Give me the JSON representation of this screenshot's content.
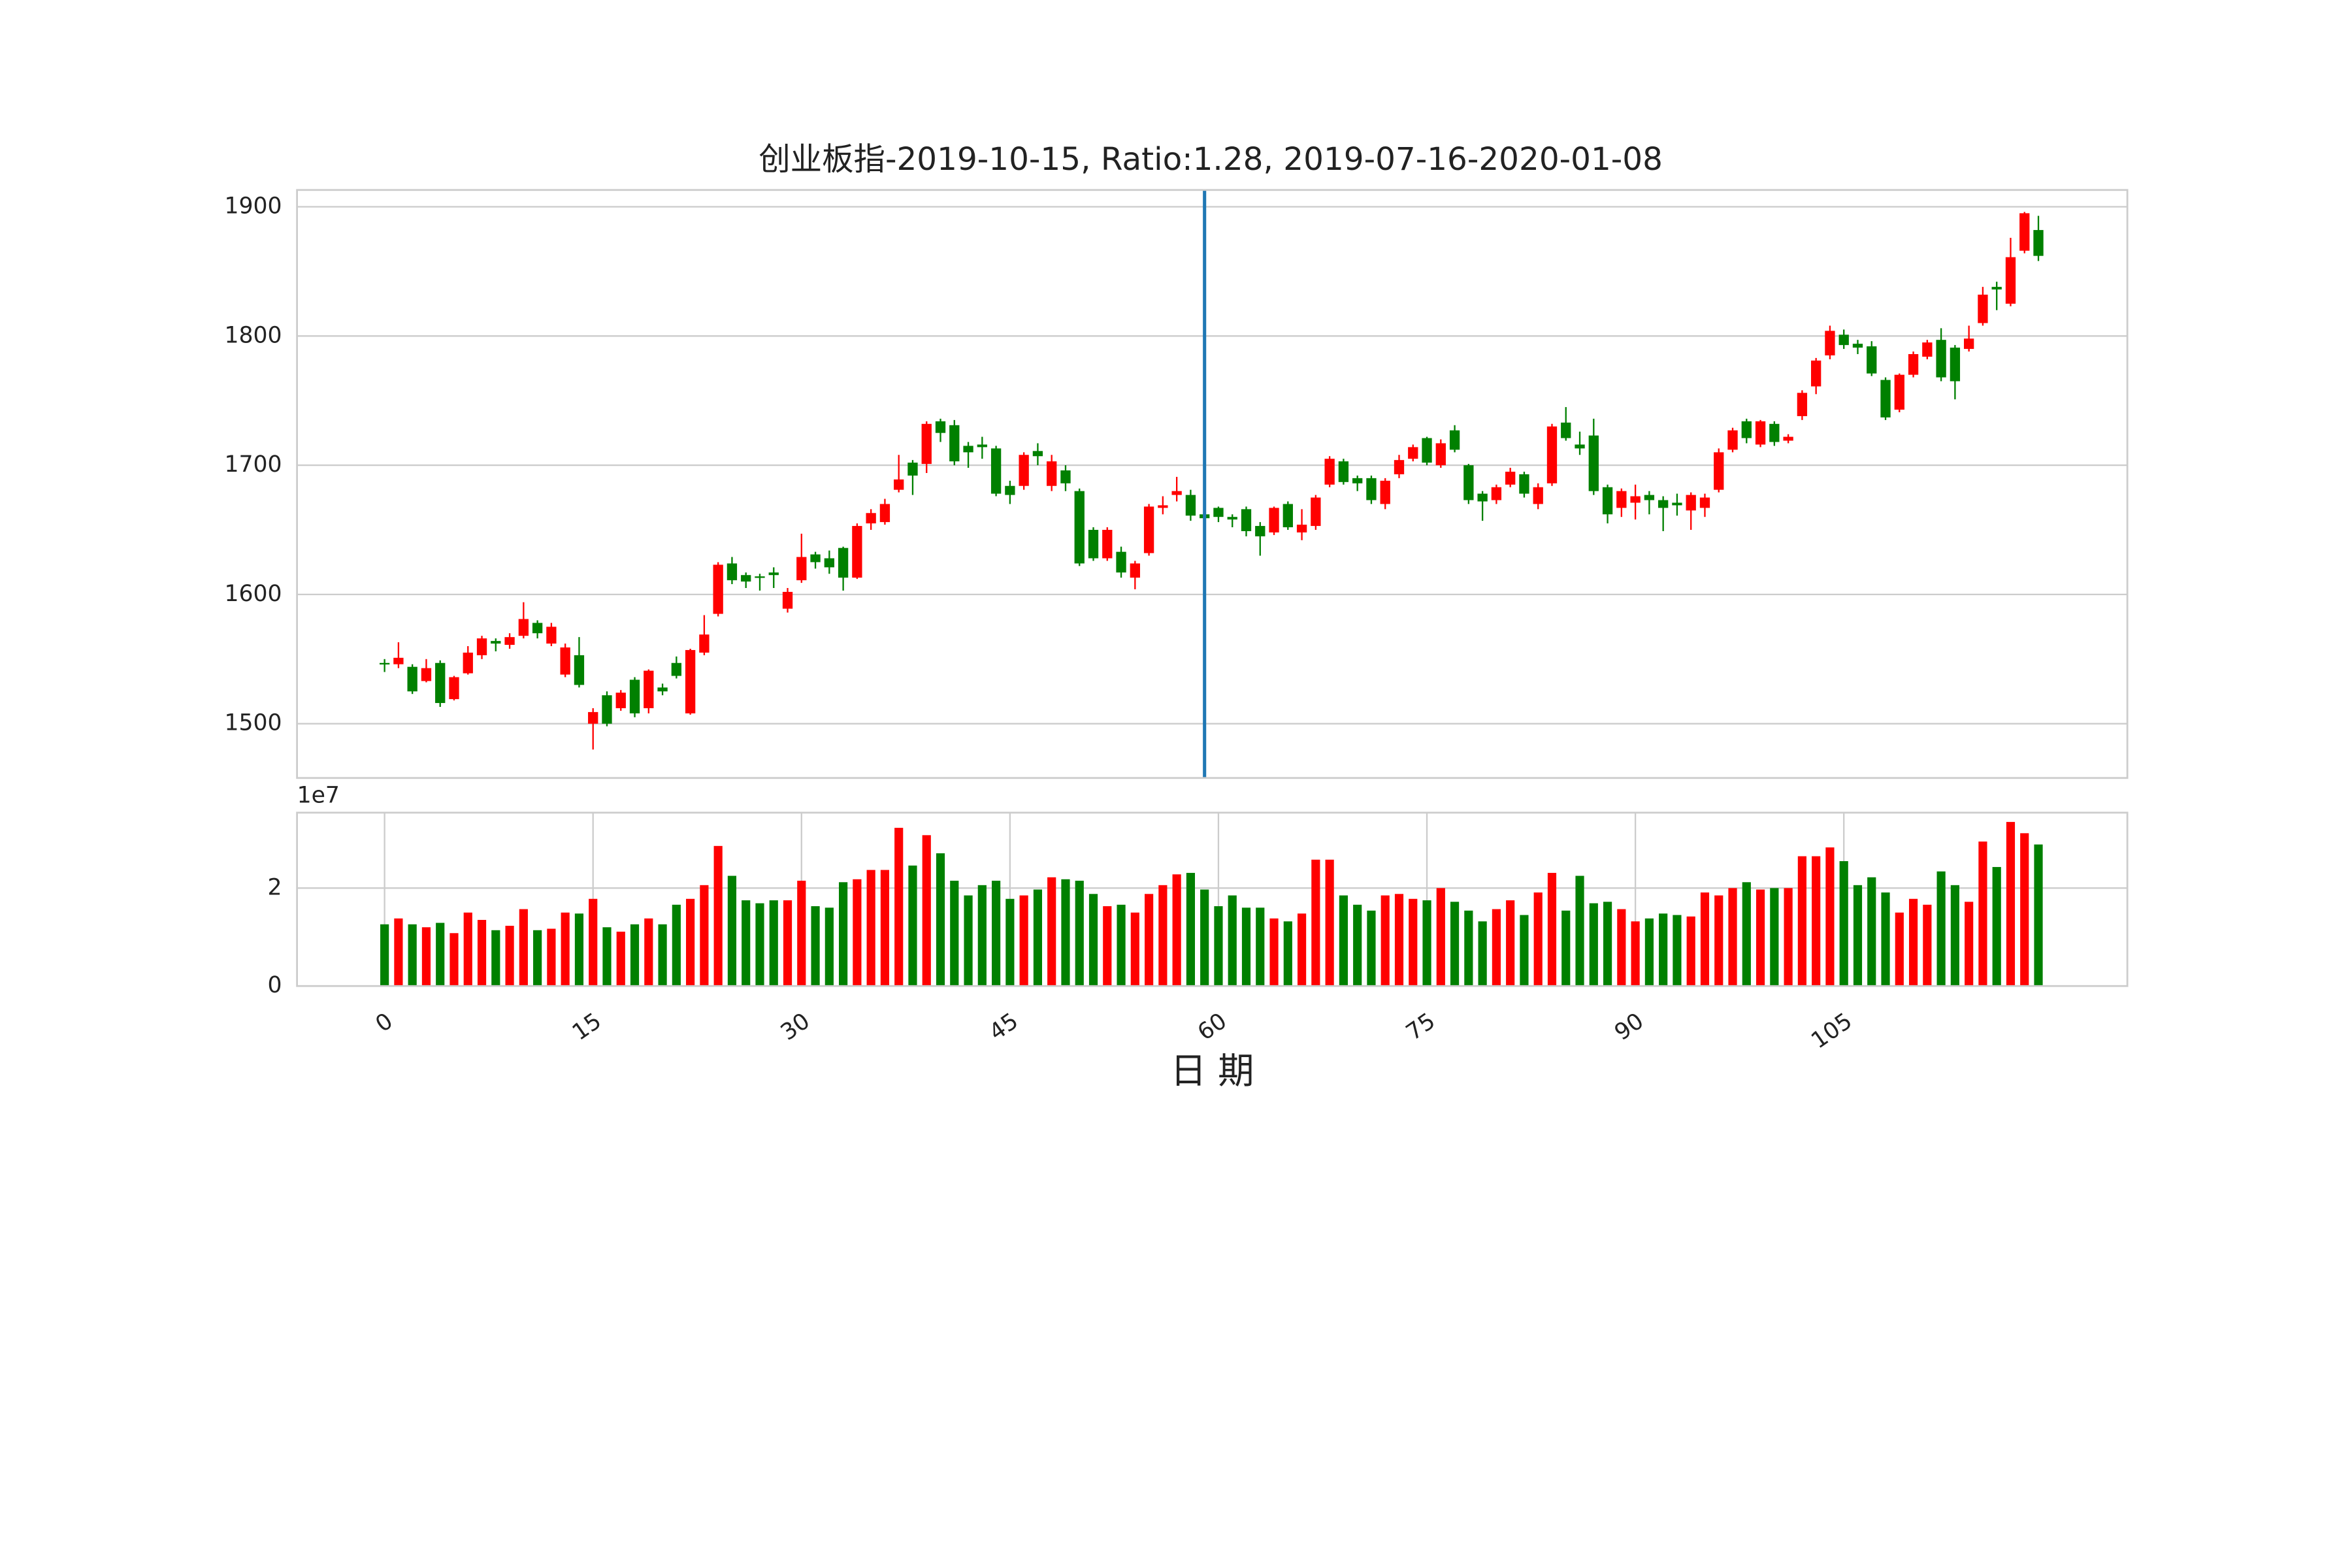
{
  "chart_data": [
    {
      "type": "candlestick",
      "title": "创业板指-2019-10-15, Ratio:1.28, 2019-07-16-2020-01-08",
      "open": [
        1547,
        1546,
        1544,
        1533,
        1547,
        1519,
        1539,
        1553,
        1564,
        1561,
        1568,
        1578,
        1562,
        1538,
        1553,
        1500,
        1522,
        1512,
        1534,
        1512,
        1528,
        1547,
        1508,
        1555,
        1585,
        1624,
        1615,
        1614,
        1617,
        1589,
        1611,
        1631,
        1628,
        1636,
        1613,
        1655,
        1656,
        1681,
        1702,
        1701,
        1734,
        1731,
        1715,
        1716,
        1713,
        1684,
        1684,
        1711,
        1684,
        1696,
        1680,
        1650,
        1628,
        1633,
        1613,
        1632,
        1667,
        1677,
        1677,
        1662,
        1667,
        1660,
        1666,
        1653,
        1648,
        1670,
        1648,
        1653,
        1685,
        1703,
        1690,
        1690,
        1670,
        1693,
        1705,
        1721,
        1700,
        1727,
        1700,
        1678,
        1673,
        1685,
        1693,
        1670,
        1686,
        1733,
        1716,
        1723,
        1683,
        1667,
        1671,
        1677,
        1673,
        1671,
        1665,
        1667,
        1681,
        1712,
        1734,
        1716,
        1732,
        1719,
        1738,
        1761,
        1785,
        1801,
        1794,
        1792,
        1766,
        1743,
        1770,
        1784,
        1797,
        1791,
        1790,
        1810,
        1838,
        1825,
        1866,
        1882
      ],
      "high": [
        1550,
        1563,
        1546,
        1550,
        1549,
        1537,
        1560,
        1568,
        1566,
        1570,
        1594,
        1580,
        1578,
        1562,
        1567,
        1512,
        1525,
        1526,
        1536,
        1542,
        1531,
        1552,
        1558,
        1584,
        1625,
        1629,
        1617,
        1616,
        1621,
        1605,
        1647,
        1633,
        1634,
        1637,
        1655,
        1666,
        1674,
        1708,
        1704,
        1734,
        1736,
        1735,
        1718,
        1722,
        1715,
        1688,
        1710,
        1717,
        1708,
        1700,
        1682,
        1652,
        1652,
        1637,
        1626,
        1670,
        1676,
        1691,
        1681,
        1666,
        1668,
        1662,
        1668,
        1656,
        1668,
        1672,
        1666,
        1677,
        1707,
        1705,
        1692,
        1692,
        1690,
        1708,
        1716,
        1722,
        1720,
        1731,
        1701,
        1680,
        1685,
        1698,
        1695,
        1686,
        1732,
        1745,
        1726,
        1736,
        1685,
        1682,
        1685,
        1680,
        1676,
        1678,
        1679,
        1678,
        1713,
        1729,
        1736,
        1735,
        1734,
        1724,
        1758,
        1783,
        1808,
        1805,
        1797,
        1796,
        1768,
        1771,
        1788,
        1797,
        1806,
        1793,
        1808,
        1838,
        1842,
        1876,
        1896,
        1893
      ],
      "low": [
        1540,
        1543,
        1523,
        1532,
        1513,
        1518,
        1538,
        1550,
        1556,
        1558,
        1566,
        1566,
        1560,
        1536,
        1528,
        1480,
        1498,
        1510,
        1505,
        1508,
        1522,
        1535,
        1507,
        1553,
        1583,
        1608,
        1605,
        1603,
        1605,
        1586,
        1609,
        1620,
        1616,
        1603,
        1612,
        1650,
        1654,
        1679,
        1677,
        1694,
        1718,
        1700,
        1698,
        1705,
        1676,
        1670,
        1681,
        1700,
        1680,
        1680,
        1622,
        1626,
        1626,
        1613,
        1604,
        1630,
        1662,
        1672,
        1657,
        1655,
        1656,
        1652,
        1645,
        1630,
        1646,
        1650,
        1642,
        1650,
        1683,
        1685,
        1680,
        1670,
        1666,
        1690,
        1703,
        1700,
        1698,
        1710,
        1670,
        1657,
        1670,
        1683,
        1675,
        1666,
        1684,
        1719,
        1708,
        1677,
        1655,
        1660,
        1658,
        1662,
        1649,
        1661,
        1650,
        1660,
        1679,
        1710,
        1717,
        1714,
        1715,
        1717,
        1735,
        1755,
        1782,
        1790,
        1786,
        1769,
        1735,
        1741,
        1768,
        1782,
        1765,
        1751,
        1788,
        1808,
        1820,
        1823,
        1864,
        1858
      ],
      "close": [
        1546,
        1551,
        1525,
        1543,
        1516,
        1536,
        1555,
        1566,
        1562,
        1567,
        1581,
        1570,
        1575,
        1559,
        1530,
        1509,
        1500,
        1524,
        1508,
        1541,
        1525,
        1537,
        1557,
        1569,
        1623,
        1611,
        1610,
        1613,
        1615,
        1602,
        1629,
        1625,
        1621,
        1613,
        1653,
        1663,
        1670,
        1689,
        1692,
        1732,
        1725,
        1703,
        1710,
        1714,
        1678,
        1677,
        1708,
        1707,
        1703,
        1686,
        1624,
        1628,
        1650,
        1617,
        1624,
        1668,
        1669,
        1680,
        1661,
        1659,
        1660,
        1658,
        1649,
        1645,
        1667,
        1652,
        1654,
        1675,
        1705,
        1687,
        1686,
        1673,
        1688,
        1704,
        1714,
        1702,
        1717,
        1712,
        1673,
        1672,
        1683,
        1695,
        1678,
        1683,
        1730,
        1721,
        1713,
        1680,
        1662,
        1680,
        1676,
        1673,
        1667,
        1669,
        1677,
        1675,
        1710,
        1727,
        1721,
        1734,
        1718,
        1722,
        1756,
        1781,
        1804,
        1793,
        1791,
        1771,
        1737,
        1770,
        1786,
        1795,
        1768,
        1765,
        1798,
        1832,
        1836,
        1861,
        1895,
        1862
      ],
      "up_color": "#ff0000",
      "down_color": "#008000",
      "xlim": [
        -6.3,
        125.4
      ],
      "ylim": [
        1458,
        1913
      ],
      "yticks": [
        1500,
        1600,
        1700,
        1800,
        1900
      ],
      "grid": true,
      "vline_x": 59,
      "vline_color": "#1f77b4"
    },
    {
      "type": "bar",
      "y_offset_label": "1e7",
      "xlabel": "日 期",
      "values": [
        1.26,
        1.38,
        1.26,
        1.2,
        1.29,
        1.08,
        1.5,
        1.35,
        1.14,
        1.23,
        1.57,
        1.14,
        1.17,
        1.5,
        1.48,
        1.78,
        1.2,
        1.11,
        1.26,
        1.38,
        1.26,
        1.66,
        1.78,
        2.06,
        2.86,
        2.25,
        1.75,
        1.69,
        1.75,
        1.75,
        2.15,
        1.63,
        1.6,
        2.12,
        2.18,
        2.37,
        2.37,
        3.23,
        2.46,
        3.08,
        2.71,
        2.15,
        1.85,
        2.06,
        2.15,
        1.78,
        1.85,
        1.97,
        2.22,
        2.18,
        2.15,
        1.88,
        1.63,
        1.66,
        1.5,
        1.88,
        2.06,
        2.28,
        2.31,
        1.97,
        1.63,
        1.85,
        1.6,
        1.6,
        1.38,
        1.32,
        1.48,
        2.58,
        2.58,
        1.85,
        1.66,
        1.54,
        1.85,
        1.88,
        1.78,
        1.75,
        2.0,
        1.72,
        1.54,
        1.32,
        1.57,
        1.75,
        1.45,
        1.91,
        2.31,
        1.54,
        2.25,
        1.69,
        1.72,
        1.57,
        1.32,
        1.38,
        1.48,
        1.45,
        1.42,
        1.91,
        1.85,
        2.0,
        2.12,
        1.97,
        2.0,
        2.0,
        2.65,
        2.65,
        2.83,
        2.55,
        2.06,
        2.22,
        1.91,
        1.5,
        1.78,
        1.66,
        2.34,
        2.06,
        1.72,
        2.95,
        2.43,
        3.35,
        3.12,
        2.89
      ],
      "xlim": [
        -6.3,
        125.4
      ],
      "xticks": [
        0,
        15,
        30,
        45,
        60,
        75,
        90,
        105
      ],
      "ylim": [
        0,
        3.54
      ],
      "yticks": [
        0,
        2
      ],
      "grid": true
    }
  ]
}
